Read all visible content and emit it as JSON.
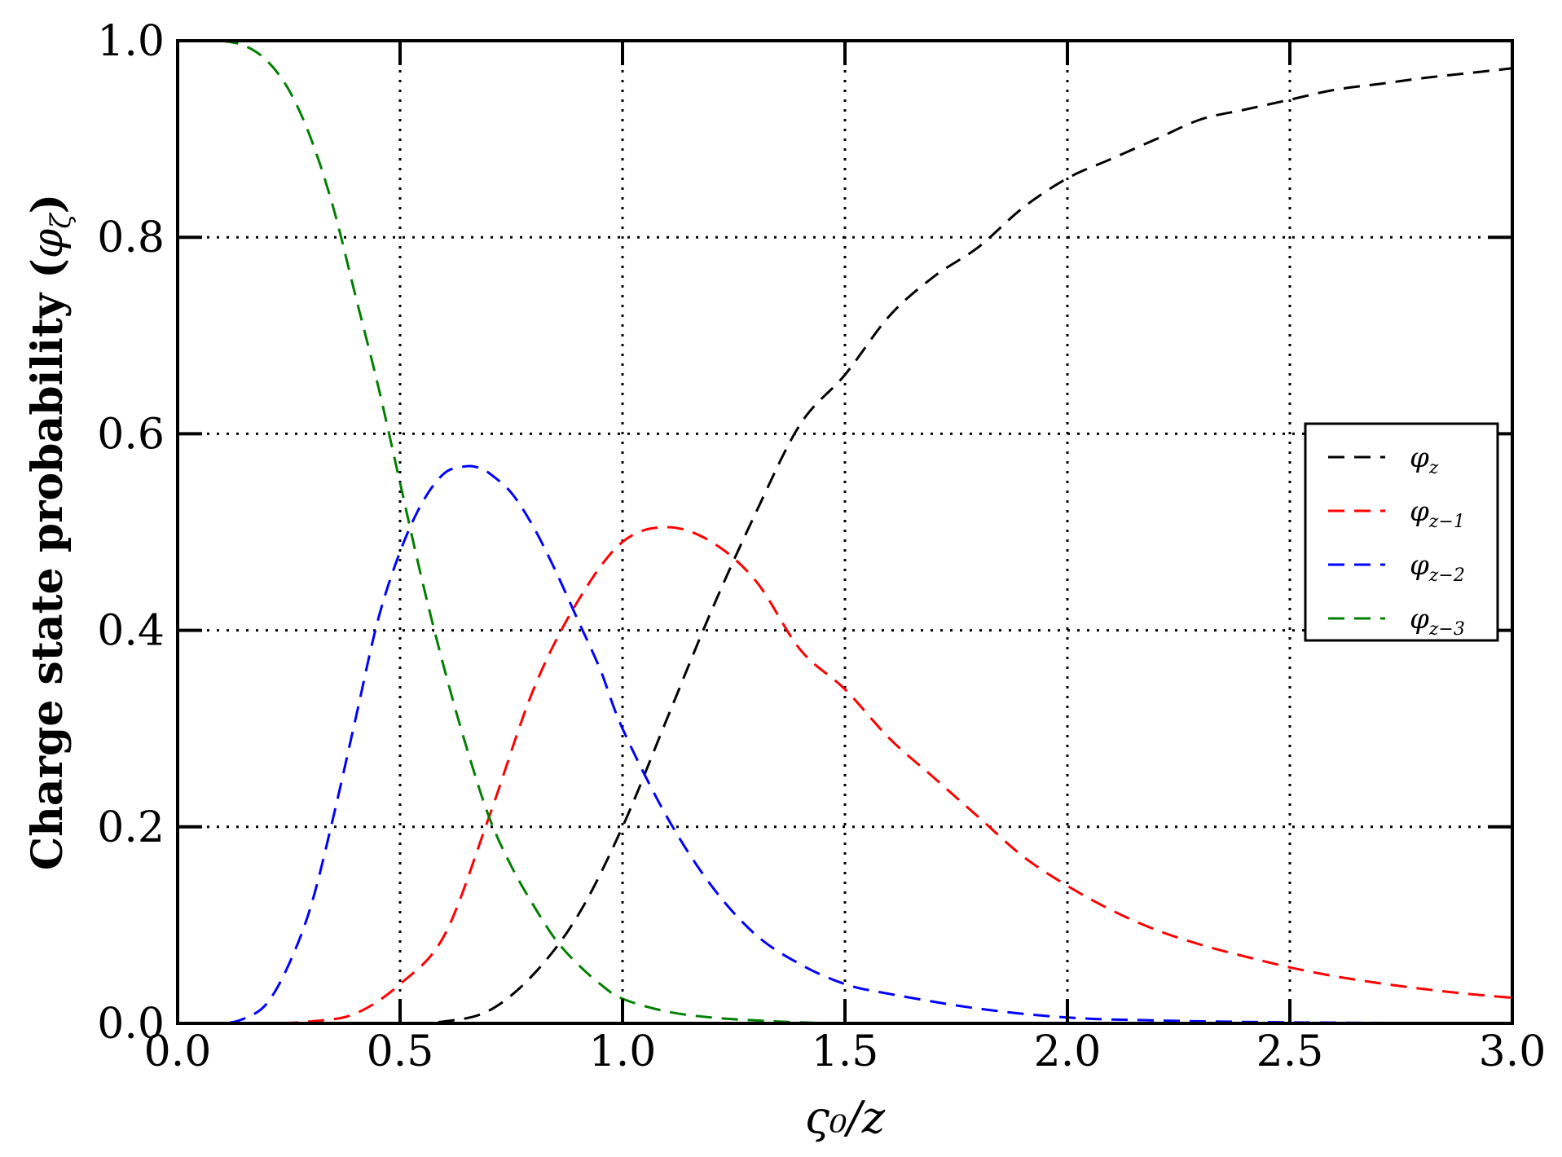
{
  "chart_data": {
    "type": "line",
    "title": "",
    "xlabel": "ς₀/z",
    "ylabel_main": "Charge state probability (",
    "ylabel_symbol": "φ",
    "ylabel_sub": "ζ",
    "ylabel_close": ")",
    "xlim": [
      0.0,
      3.0
    ],
    "ylim": [
      0.0,
      1.0
    ],
    "xticks": [
      "0.0",
      "0.5",
      "1.0",
      "1.5",
      "2.0",
      "2.5",
      "3.0"
    ],
    "yticks": [
      "0.0",
      "0.2",
      "0.4",
      "0.6",
      "0.8",
      "1.0"
    ],
    "grid": true,
    "grid_style": "dotted",
    "legend_position": "center-right",
    "series": [
      {
        "name": "φz",
        "symbol": "φ",
        "sub": "z",
        "color": "#000000",
        "x": [
          0.0,
          0.1,
          0.2,
          0.3,
          0.4,
          0.5,
          0.6,
          0.7,
          0.8,
          0.9,
          1.0,
          1.1,
          1.2,
          1.3,
          1.4,
          1.5,
          1.6,
          1.7,
          1.8,
          1.9,
          2.0,
          2.1,
          2.2,
          2.3,
          2.4,
          2.5,
          2.6,
          2.7,
          2.8,
          2.9,
          3.0
        ],
        "y": [
          0.0,
          0.0,
          0.0,
          0.0,
          0.0,
          0.0,
          0.002,
          0.013,
          0.05,
          0.11,
          0.2,
          0.31,
          0.42,
          0.52,
          0.61,
          0.66,
          0.72,
          0.76,
          0.79,
          0.83,
          0.86,
          0.88,
          0.9,
          0.92,
          0.93,
          0.94,
          0.95,
          0.956,
          0.962,
          0.967,
          0.972
        ]
      },
      {
        "name": "φz−1",
        "symbol": "φ",
        "sub": "z−1",
        "color": "#ff0000",
        "x": [
          0.0,
          0.1,
          0.2,
          0.3,
          0.4,
          0.5,
          0.6,
          0.7,
          0.8,
          0.9,
          1.0,
          1.1,
          1.2,
          1.3,
          1.4,
          1.5,
          1.6,
          1.7,
          1.8,
          1.9,
          2.0,
          2.1,
          2.2,
          2.3,
          2.4,
          2.5,
          2.6,
          2.7,
          2.8,
          2.9,
          3.0
        ],
        "y": [
          0.0,
          0.0,
          0.0,
          0.002,
          0.01,
          0.04,
          0.09,
          0.21,
          0.34,
          0.43,
          0.49,
          0.505,
          0.49,
          0.45,
          0.38,
          0.34,
          0.29,
          0.25,
          0.21,
          0.17,
          0.14,
          0.115,
          0.095,
          0.08,
          0.068,
          0.057,
          0.048,
          0.041,
          0.035,
          0.03,
          0.026
        ]
      },
      {
        "name": "φz−2",
        "symbol": "φ",
        "sub": "z−2",
        "color": "#0000ff",
        "x": [
          0.0,
          0.1,
          0.15,
          0.2,
          0.25,
          0.3,
          0.35,
          0.4,
          0.45,
          0.5,
          0.55,
          0.6,
          0.65,
          0.68,
          0.7,
          0.75,
          0.8,
          0.85,
          0.9,
          0.95,
          1.0,
          1.1,
          1.2,
          1.3,
          1.4,
          1.5,
          1.6,
          1.8,
          2.0,
          2.2,
          2.5,
          3.0
        ],
        "y": [
          0.0,
          0.0,
          0.005,
          0.02,
          0.06,
          0.12,
          0.21,
          0.31,
          0.41,
          0.48,
          0.53,
          0.56,
          0.567,
          0.565,
          0.56,
          0.54,
          0.505,
          0.46,
          0.41,
          0.36,
          0.3,
          0.21,
          0.14,
          0.09,
          0.06,
          0.04,
          0.03,
          0.015,
          0.006,
          0.003,
          0.001,
          0.0
        ]
      },
      {
        "name": "φz−3",
        "symbol": "φ",
        "sub": "z−3",
        "color": "#008000",
        "x": [
          0.1,
          0.15,
          0.2,
          0.25,
          0.3,
          0.35,
          0.4,
          0.45,
          0.5,
          0.55,
          0.6,
          0.65,
          0.7,
          0.75,
          0.8,
          0.85,
          0.9,
          0.95,
          1.0,
          1.1,
          1.2,
          1.3,
          1.4,
          1.5,
          1.6,
          1.8,
          2.0,
          2.5,
          3.0
        ],
        "y": [
          1.0,
          0.995,
          0.98,
          0.95,
          0.9,
          0.83,
          0.74,
          0.65,
          0.55,
          0.45,
          0.36,
          0.28,
          0.21,
          0.16,
          0.12,
          0.085,
          0.06,
          0.04,
          0.025,
          0.012,
          0.006,
          0.003,
          0.001,
          0.0,
          0.0,
          0.0,
          0.0,
          0.0,
          0.0
        ]
      }
    ]
  }
}
